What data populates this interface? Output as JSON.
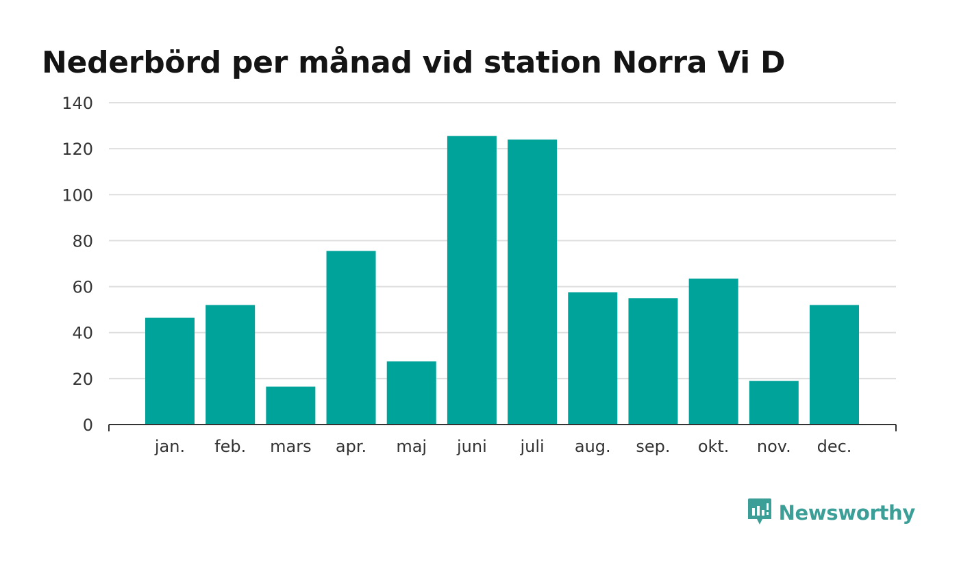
{
  "title": "Nederbörd per månad vid station Norra Vi D",
  "brand": {
    "name": "Newsworthy",
    "icon": "newsworthy-logo-icon",
    "color": "#3b9e97"
  },
  "chart_data": {
    "type": "bar",
    "title": "Nederbörd per månad vid station Norra Vi D",
    "xlabel": "",
    "ylabel": "",
    "categories": [
      "jan.",
      "feb.",
      "mars",
      "apr.",
      "maj",
      "juni",
      "juli",
      "aug.",
      "sep.",
      "okt.",
      "nov.",
      "dec."
    ],
    "values": [
      46.5,
      52,
      16.5,
      75.5,
      27.5,
      125.5,
      124,
      57.5,
      55,
      63.5,
      19,
      52
    ],
    "ylim": [
      0,
      140
    ],
    "yticks": [
      0,
      20,
      40,
      60,
      80,
      100,
      120,
      140
    ],
    "grid": true,
    "bar_color": "#00a399",
    "legend": "none"
  }
}
